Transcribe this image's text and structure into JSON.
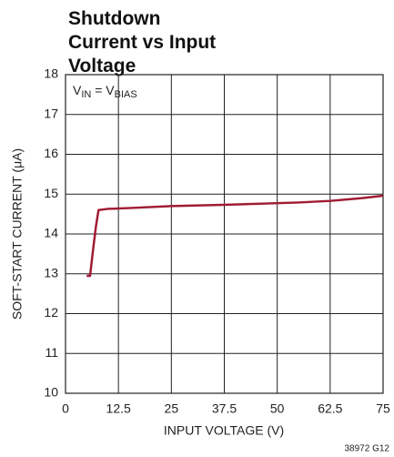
{
  "chart_data": {
    "type": "line",
    "title": "Shutdown Current vs Input Voltage",
    "annotation": [
      "V",
      "IN",
      " = V",
      "BIAS"
    ],
    "x_label": "INPUT VOLTAGE (V)",
    "y_label": "SOFT-START CURRENT (μA)",
    "footnote": "38972 G12",
    "series": [
      {
        "color": "#a01c34",
        "x": [
          5,
          5.8,
          6.5,
          7.2,
          7.8,
          10,
          15,
          25,
          40,
          55,
          62.5,
          70,
          75
        ],
        "values": [
          12.95,
          12.95,
          13.6,
          14.2,
          14.6,
          14.63,
          14.65,
          14.7,
          14.74,
          14.79,
          14.83,
          14.9,
          14.96
        ]
      }
    ],
    "xlim": [
      0,
      75
    ],
    "xticks": [
      0,
      12.5,
      25,
      37.5,
      50,
      62.5,
      75
    ],
    "ylim": [
      10,
      18
    ],
    "yticks": [
      10,
      11,
      12,
      13,
      14,
      15,
      16,
      17,
      18
    ],
    "grid": true
  }
}
